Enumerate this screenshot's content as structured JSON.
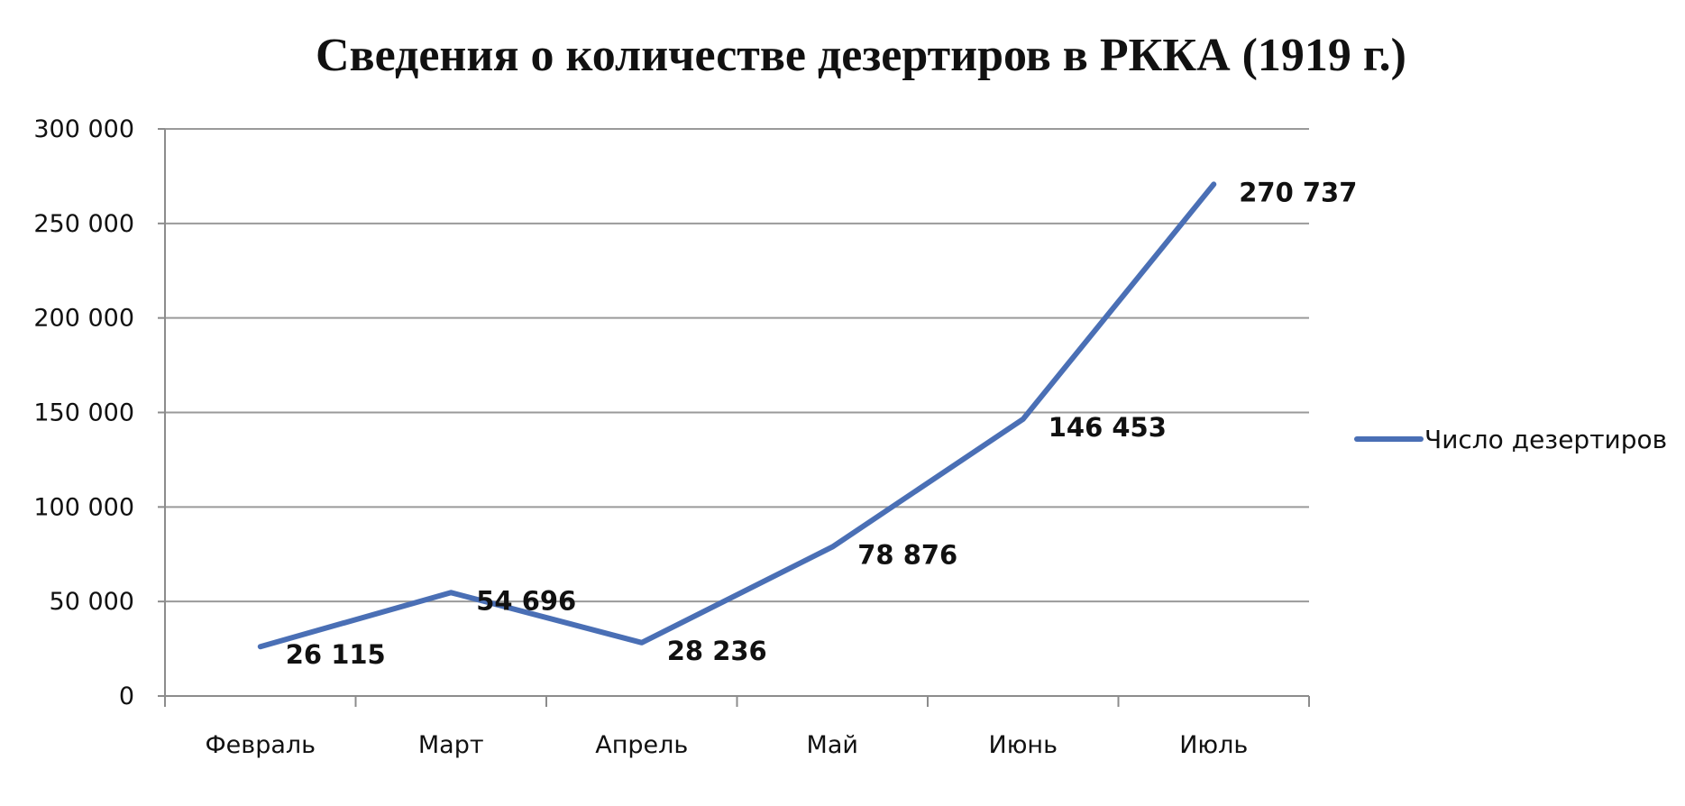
{
  "chart_data": {
    "type": "line",
    "title": "Сведения о количестве дезертиров в РККА (1919 г.)",
    "categories": [
      "Февраль",
      "Март",
      "Апрель",
      "Май",
      "Июнь",
      "Июль"
    ],
    "series": [
      {
        "name": "Число дезертиров",
        "values": [
          26115,
          54696,
          28236,
          78876,
          146453,
          270737
        ],
        "data_labels": [
          "26 115",
          "54 696",
          "28 236",
          "78 876",
          "146 453",
          "270 737"
        ],
        "color": "#4a6fb5"
      }
    ],
    "ylim": [
      0,
      300000
    ],
    "yticks": [
      0,
      50000,
      100000,
      150000,
      200000,
      250000,
      300000
    ],
    "ytick_labels": [
      "0",
      "50 000",
      "100 000",
      "150 000",
      "200 000",
      "250 000",
      "300 000"
    ],
    "grid": true,
    "legend_position": "right"
  }
}
